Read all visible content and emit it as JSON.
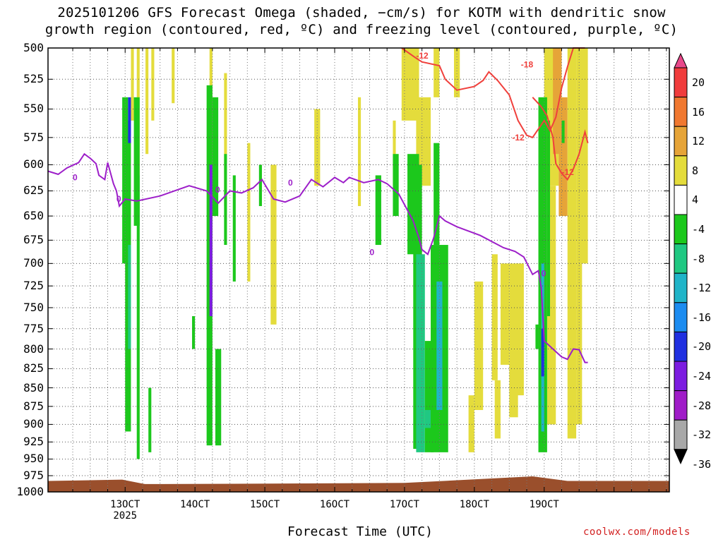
{
  "title_line1": "2025101206 GFS Forecast Omega (shaded, −cm/s) for KOTM with dendritic snow",
  "title_line2": "growth region (contoured, red, ºC) and freezing level (contoured, purple, ºC)",
  "x_axis_title": "Forecast Time (UTC)",
  "credit": "coolwx.com/models",
  "chart_data": {
    "type": "heatmap",
    "title": "2025101206 GFS Forecast Omega (shaded, −cm/s) for KOTM with dendritic snow growth region (contoured, red, ºC) and freezing level (contoured, purple, ºC)",
    "xlabel": "Forecast Time (UTC)",
    "ylabel": "",
    "x_range_hours": [
      -8.5,
      205
    ],
    "y_range_hPa": [
      1000,
      500
    ],
    "y_scale": "log-pressure",
    "y_ticks": [
      500,
      525,
      550,
      575,
      600,
      625,
      650,
      675,
      700,
      725,
      750,
      775,
      800,
      825,
      850,
      875,
      900,
      925,
      950,
      975,
      1000
    ],
    "x_ticks": [
      {
        "label": "13OCT",
        "sub": "2025",
        "hour": 18
      },
      {
        "label": "14OCT",
        "sub": "",
        "hour": 42
      },
      {
        "label": "15OCT",
        "sub": "",
        "hour": 66
      },
      {
        "label": "16OCT",
        "sub": "",
        "hour": 90
      },
      {
        "label": "17OCT",
        "sub": "",
        "hour": 114
      },
      {
        "label": "18OCT",
        "sub": "",
        "hour": 138
      },
      {
        "label": "19OCT",
        "sub": "",
        "hour": 162
      }
    ],
    "grid": true,
    "colorbar": {
      "labels": [
        20,
        16,
        12,
        8,
        4,
        -4,
        -8,
        -12,
        -16,
        -20,
        -24,
        -28,
        -32,
        -36
      ],
      "colors": [
        "#e8488a",
        "#f03c3c",
        "#f07830",
        "#e6a438",
        "#e4dc3c",
        "#ffffff",
        "#1cc81c",
        "#20c882",
        "#20b4c8",
        "#1c8cf0",
        "#2030e0",
        "#7c1ce0",
        "#a01cc8",
        "#a8a8a8",
        "#000000"
      ]
    },
    "freezing_level": {
      "label": "0",
      "color": "#9d1fc9",
      "points": [
        [
          -8.5,
          606
        ],
        [
          -5,
          609
        ],
        [
          -2,
          603
        ],
        [
          2,
          598
        ],
        [
          4,
          590
        ],
        [
          6,
          594
        ],
        [
          8,
          599
        ],
        [
          9,
          610
        ],
        [
          11,
          614
        ],
        [
          12,
          598
        ],
        [
          14,
          618
        ],
        [
          15,
          625
        ],
        [
          16,
          640
        ],
        [
          18,
          633
        ],
        [
          22,
          635
        ],
        [
          30,
          630
        ],
        [
          40,
          620
        ],
        [
          46,
          625
        ],
        [
          50,
          637
        ],
        [
          54,
          625
        ],
        [
          58,
          627
        ],
        [
          62,
          622
        ],
        [
          65,
          614
        ],
        [
          69,
          633
        ],
        [
          73,
          636
        ],
        [
          78,
          630
        ],
        [
          82,
          614
        ],
        [
          86,
          621
        ],
        [
          90,
          612
        ],
        [
          93,
          617
        ],
        [
          95,
          612
        ],
        [
          100,
          617
        ],
        [
          105,
          614
        ],
        [
          108,
          618
        ],
        [
          112,
          628
        ],
        [
          117,
          655
        ],
        [
          119,
          673
        ],
        [
          120,
          685
        ],
        [
          122,
          690
        ],
        [
          124,
          673
        ],
        [
          126,
          650
        ],
        [
          128,
          655
        ],
        [
          132,
          661
        ],
        [
          140,
          670
        ],
        [
          148,
          683
        ],
        [
          152,
          687
        ],
        [
          155,
          693
        ],
        [
          158,
          712
        ],
        [
          160,
          708
        ],
        [
          161,
          727
        ],
        [
          162,
          790
        ],
        [
          165,
          800
        ],
        [
          168,
          810
        ],
        [
          170,
          813
        ],
        [
          172,
          800
        ],
        [
          174,
          801
        ],
        [
          176,
          817
        ],
        [
          177,
          817
        ]
      ],
      "labels_at": [
        [
          0,
          612
        ],
        [
          15,
          633
        ],
        [
          49,
          624
        ],
        [
          74,
          617
        ],
        [
          102,
          688
        ],
        [
          161,
          711
        ]
      ]
    },
    "dendritic_zone": {
      "color": "#f0403c",
      "levels": [
        -12,
        -18
      ],
      "upper_edge_points": [
        [
          113,
          500
        ],
        [
          118,
          508
        ],
        [
          120,
          511
        ],
        [
          126,
          514
        ],
        [
          128,
          525
        ],
        [
          132,
          534
        ],
        [
          138,
          531
        ],
        [
          141,
          526
        ],
        [
          143,
          519
        ],
        [
          146,
          526
        ],
        [
          150,
          538
        ],
        [
          153,
          560
        ],
        [
          156,
          573
        ],
        [
          158,
          575
        ],
        [
          162,
          560
        ],
        [
          164,
          569
        ],
        [
          166,
          557
        ],
        [
          168,
          532
        ],
        [
          170,
          515
        ],
        [
          172,
          500
        ],
        [
          176,
          500
        ]
      ],
      "lower_edge_points": [
        [
          158,
          540
        ],
        [
          161,
          548
        ],
        [
          163,
          556
        ],
        [
          165,
          575
        ],
        [
          166,
          599
        ],
        [
          168,
          608
        ],
        [
          170,
          614
        ],
        [
          172,
          604
        ],
        [
          174,
          590
        ],
        [
          176,
          570
        ],
        [
          177,
          580
        ]
      ],
      "labels_at": [
        [
          -12,
          118,
          506
        ],
        [
          -12,
          151,
          575
        ],
        [
          -18,
          154,
          513
        ],
        [
          -12,
          168,
          607
        ]
      ]
    },
    "omega_features": [
      {
        "hours": [
          18,
          20
        ],
        "levels_hPa": [
          500,
          900
        ],
        "min_value": -24
      },
      {
        "hours": [
          45,
          48
        ],
        "levels_hPa": [
          520,
          920
        ],
        "min_value": -24
      },
      {
        "hours": [
          117,
          130
        ],
        "levels_hPa": [
          610,
          940
        ],
        "min_value": -16
      },
      {
        "hours": [
          160,
          163
        ],
        "levels_hPa": [
          680,
          940
        ],
        "min_value": -24
      },
      {
        "hours": [
          160,
          177
        ],
        "levels_hPa": [
          500,
          910
        ],
        "max_value": 12
      }
    ],
    "terrain_pressure_hPa": 990
  }
}
